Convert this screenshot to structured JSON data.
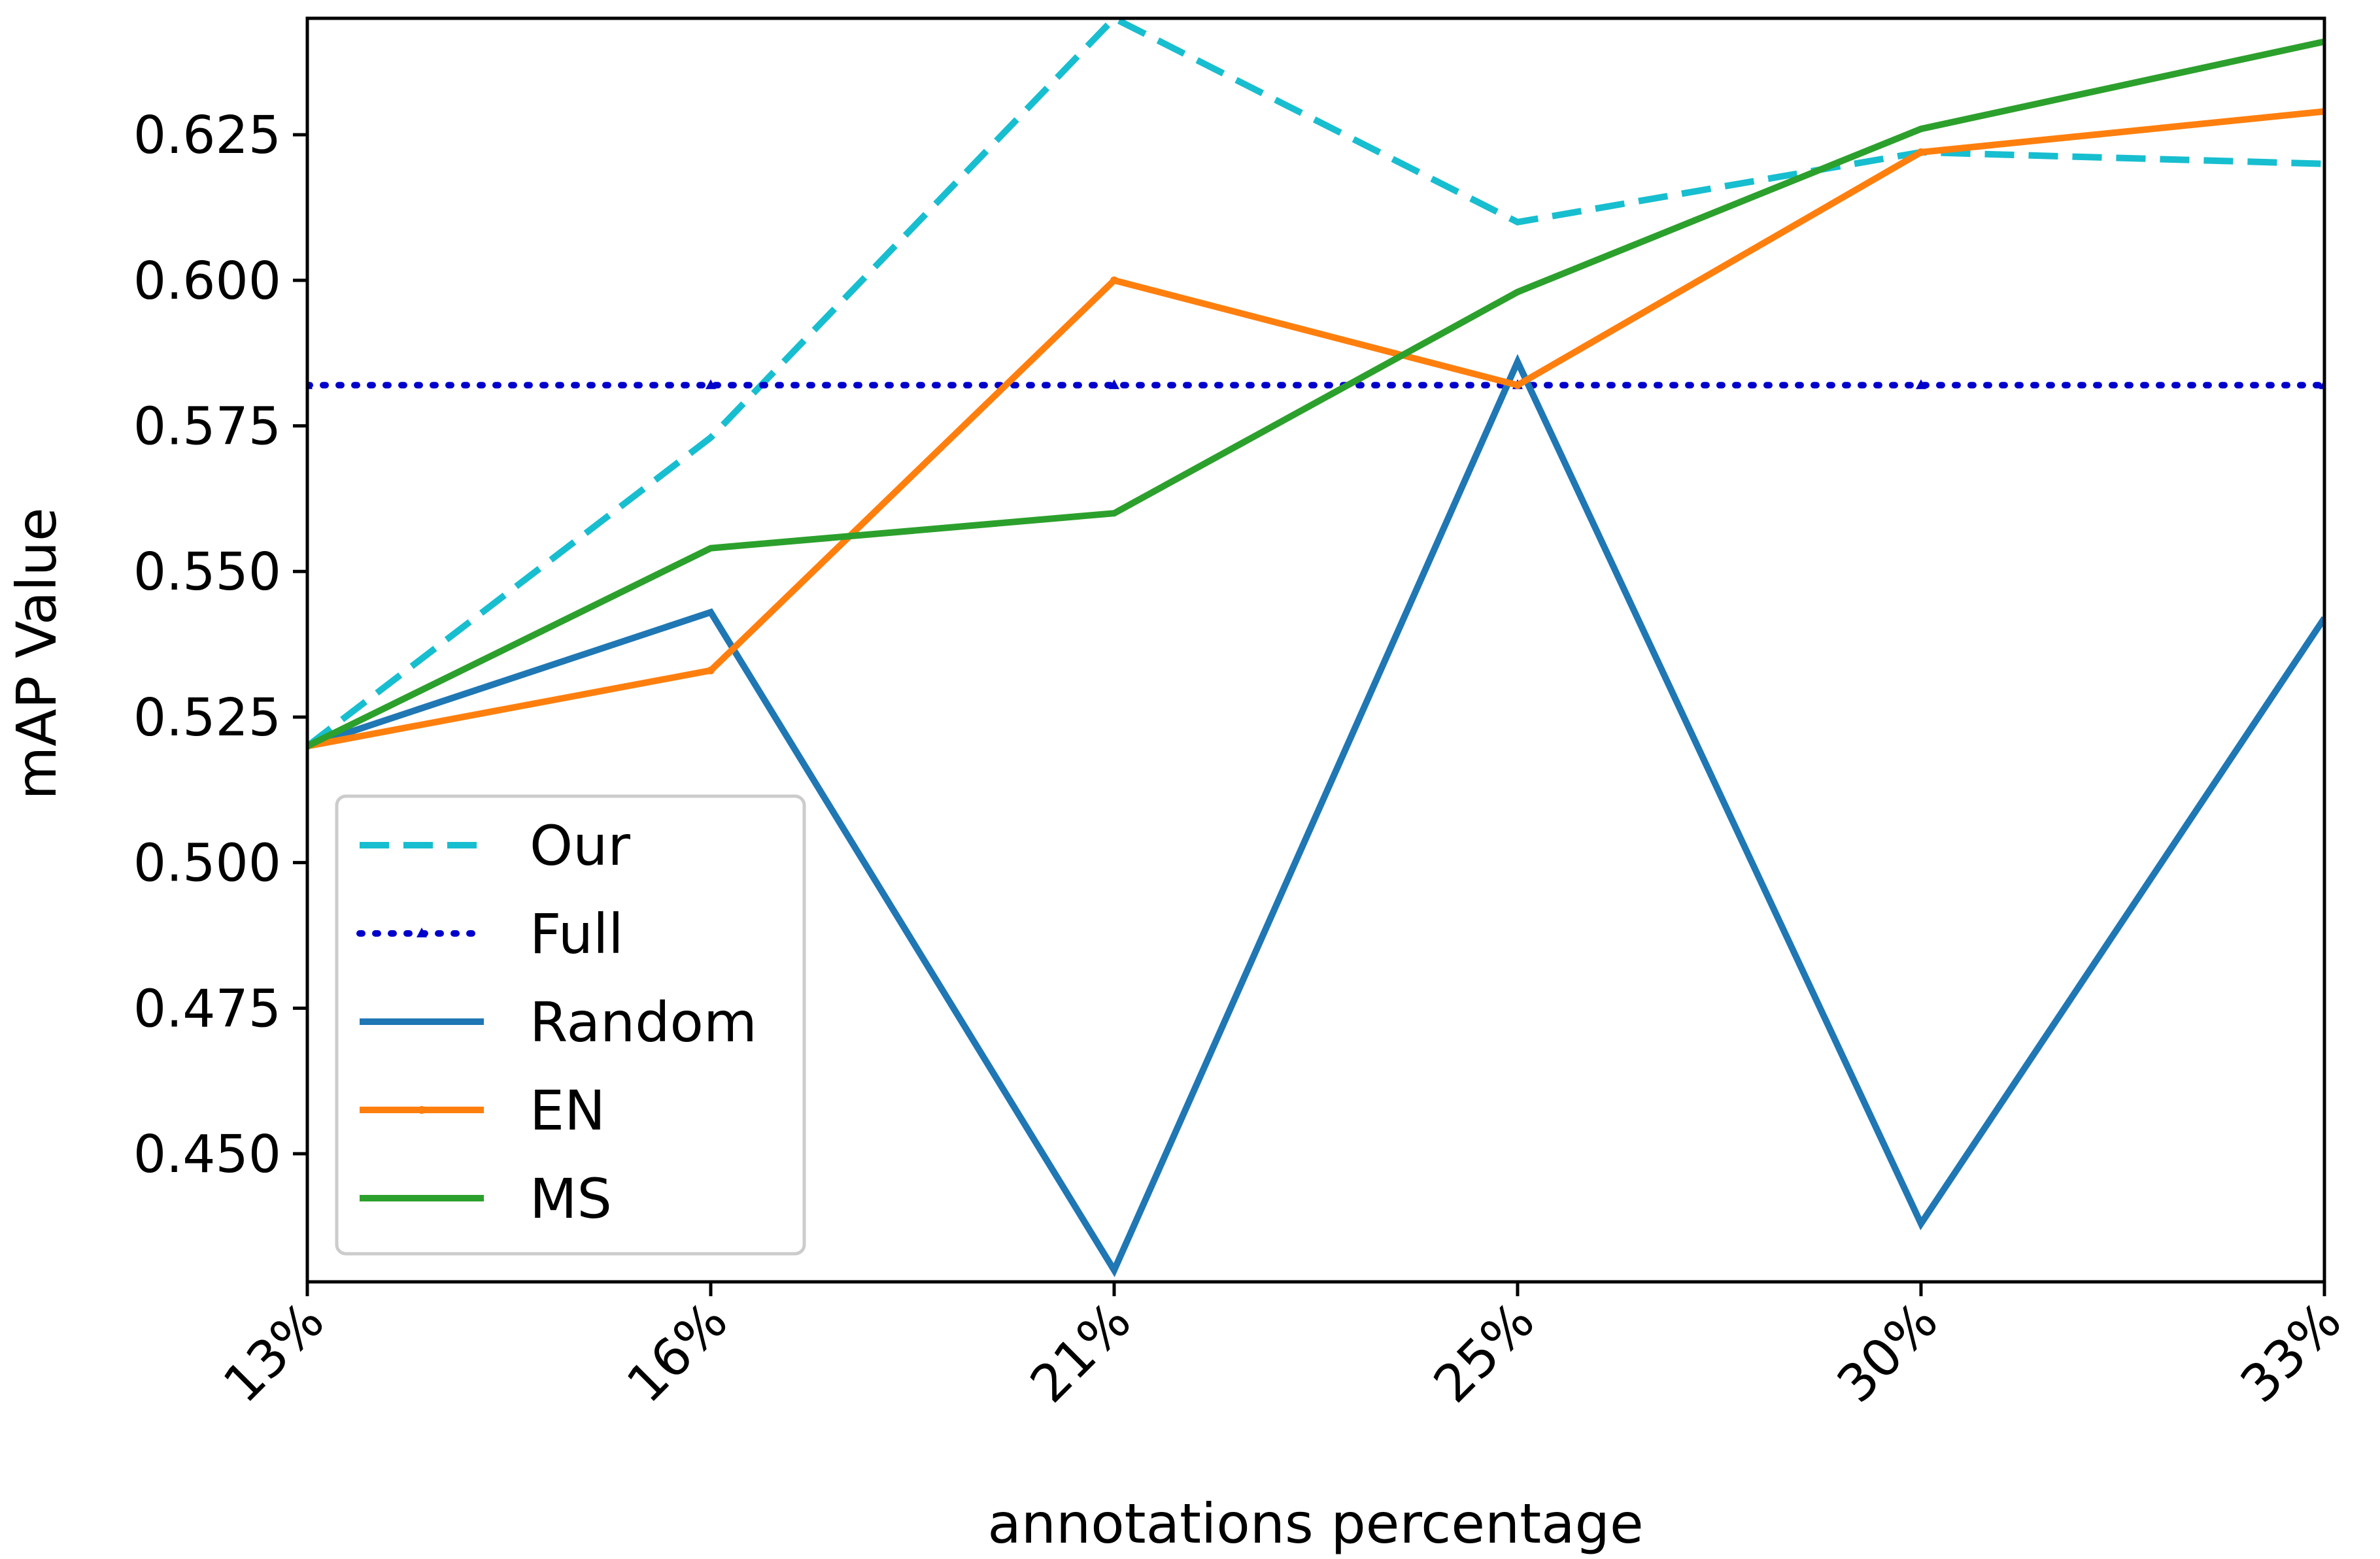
{
  "chart_data": {
    "type": "line",
    "title": "",
    "xlabel": "annotations percentage",
    "ylabel": "mAP Value",
    "categories": [
      "13%",
      "16%",
      "21%",
      "25%",
      "30%",
      "33%"
    ],
    "ylim": [
      0.428,
      0.645
    ],
    "yticks": [
      0.45,
      0.475,
      0.5,
      0.525,
      0.55,
      0.575,
      0.6,
      0.625
    ],
    "ytick_labels": [
      "0.450",
      "0.475",
      "0.500",
      "0.525",
      "0.550",
      "0.575",
      "0.600",
      "0.625"
    ],
    "grid": false,
    "legend_position": "lower-left",
    "series": [
      {
        "name": "Our",
        "color": "#17becf",
        "style": "dashed",
        "marker": "none",
        "values": [
          0.52,
          0.573,
          0.645,
          0.61,
          0.622,
          0.62
        ]
      },
      {
        "name": "Full",
        "color": "#0000cc",
        "style": "dotted",
        "marker": "triangle",
        "values": [
          0.582,
          0.582,
          0.582,
          0.582,
          0.582,
          0.582
        ]
      },
      {
        "name": "Random",
        "color": "#1f77b4",
        "style": "solid",
        "marker": "none",
        "values": [
          0.52,
          0.543,
          0.43,
          0.586,
          0.438,
          0.542
        ]
      },
      {
        "name": "EN",
        "color": "#ff7f0e",
        "style": "solid",
        "marker": "dot",
        "values": [
          0.52,
          0.533,
          0.6,
          0.582,
          0.622,
          0.629
        ]
      },
      {
        "name": "MS",
        "color": "#2ca02c",
        "style": "solid",
        "marker": "none",
        "values": [
          0.52,
          0.554,
          0.56,
          0.598,
          0.626,
          0.641
        ]
      }
    ]
  }
}
